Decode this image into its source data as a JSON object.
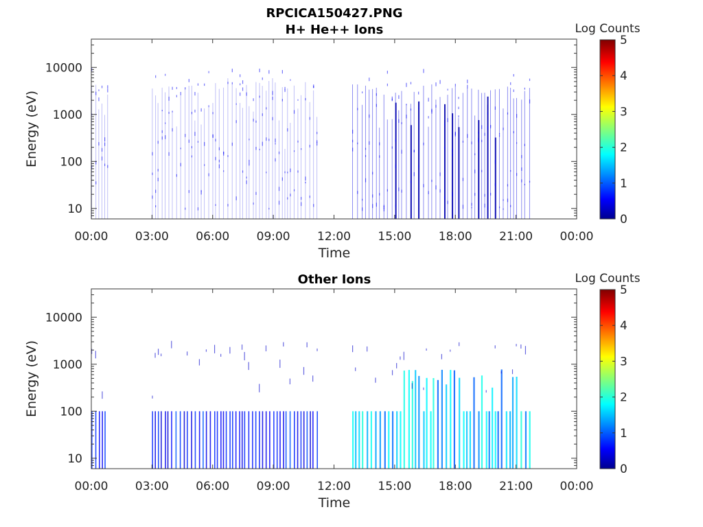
{
  "figure_title": "RPCICA150427.PNG",
  "chart_data": [
    {
      "type": "heatmap",
      "title": "H+ He++ Ions",
      "xlabel": "Time",
      "ylabel": "Energy (eV)",
      "x_ticks": [
        "00:00",
        "03:00",
        "06:00",
        "09:00",
        "12:00",
        "15:00",
        "18:00",
        "21:00",
        "00:00"
      ],
      "xlim_hours": [
        0,
        24
      ],
      "y_scale": "log",
      "ylim": [
        6,
        40000
      ],
      "y_ticks": [
        10,
        100,
        1000,
        10000
      ],
      "y_tick_labels": [
        "10",
        "100",
        "1000",
        "10000"
      ],
      "colorbar": {
        "label": "Log Counts",
        "range": [
          0,
          5
        ],
        "ticks": [
          "0",
          "1",
          "2",
          "3",
          "4",
          "5"
        ],
        "colormap": "jet"
      },
      "active_intervals_hours": [
        [
          0.0,
          0.8
        ],
        [
          3.0,
          11.3
        ],
        [
          12.9,
          21.8
        ]
      ],
      "notes": "sparse faint counts (log counts mostly 0-1), denser dark blue vertical streaks between 15:00 and 21:00"
    },
    {
      "type": "heatmap",
      "title": "Other Ions",
      "xlabel": "Time",
      "ylabel": "Energy (eV)",
      "x_ticks": [
        "00:00",
        "03:00",
        "06:00",
        "09:00",
        "12:00",
        "15:00",
        "18:00",
        "21:00",
        "00:00"
      ],
      "xlim_hours": [
        0,
        24
      ],
      "y_scale": "log",
      "ylim": [
        6,
        40000
      ],
      "y_ticks": [
        10,
        100,
        1000,
        10000
      ],
      "y_tick_labels": [
        "10",
        "100",
        "1000",
        "10000"
      ],
      "colorbar": {
        "label": "Log Counts",
        "range": [
          0,
          5
        ],
        "ticks": [
          "0",
          "1",
          "2",
          "3",
          "4",
          "5"
        ],
        "colormap": "jet"
      },
      "active_intervals_hours": [
        [
          0.0,
          0.8
        ],
        [
          3.0,
          11.3
        ],
        [
          12.9,
          21.8
        ]
      ],
      "notes": "vertical streaks with counts below ~100 eV, log counts up to ~2 (cyan) after 13:00, extending to ~1000 eV between 15:00 and 21:00"
    }
  ]
}
